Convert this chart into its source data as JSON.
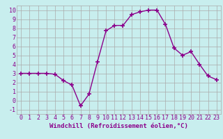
{
  "x": [
    0,
    1,
    2,
    3,
    4,
    5,
    6,
    7,
    8,
    9,
    10,
    11,
    12,
    13,
    14,
    15,
    16,
    17,
    18,
    19,
    20,
    21,
    22,
    23
  ],
  "y": [
    3.0,
    3.0,
    3.0,
    3.0,
    2.9,
    2.2,
    1.7,
    -0.6,
    0.7,
    4.3,
    7.7,
    8.3,
    8.3,
    9.5,
    9.8,
    10.0,
    10.0,
    8.4,
    5.8,
    5.0,
    5.4,
    4.0,
    2.7,
    2.3
  ],
  "line_color": "#8B008B",
  "marker": "+",
  "marker_size": 4,
  "xlabel": "Windchill (Refroidissement éolien,°C)",
  "xlim": [
    -0.5,
    23.5
  ],
  "ylim": [
    -1.5,
    10.5
  ],
  "yticks": [
    -1,
    0,
    1,
    2,
    3,
    4,
    5,
    6,
    7,
    8,
    9,
    10
  ],
  "xticks": [
    0,
    1,
    2,
    3,
    4,
    5,
    6,
    7,
    8,
    9,
    10,
    11,
    12,
    13,
    14,
    15,
    16,
    17,
    18,
    19,
    20,
    21,
    22,
    23
  ],
  "background_color": "#c8eeee",
  "grid_color": "#aaaaaa",
  "text_color": "#8B008B",
  "axis_label_fontsize": 6.5,
  "tick_fontsize": 6,
  "linewidth": 1.0,
  "marker_color": "#8B008B"
}
